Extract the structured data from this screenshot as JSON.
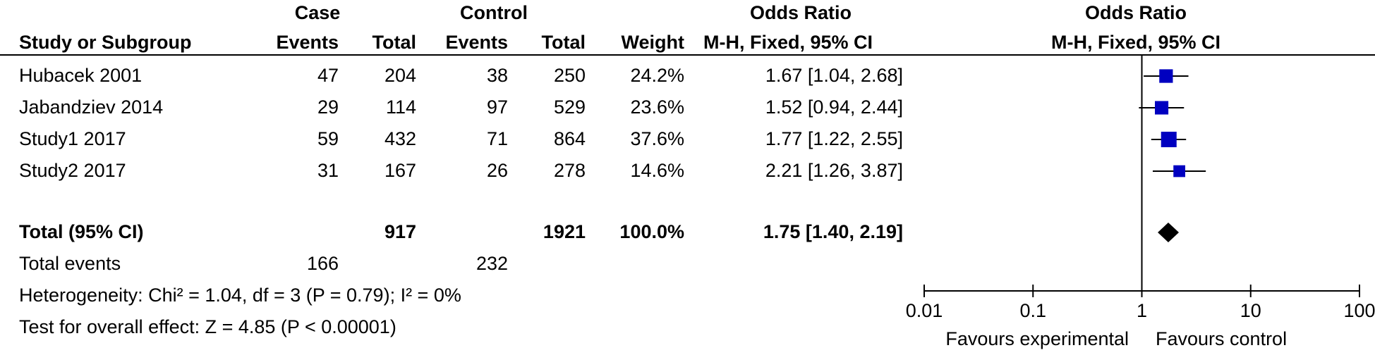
{
  "headers": {
    "case_group": "Case",
    "control_group": "Control",
    "or_group": "Odds Ratio",
    "plot_group": "Odds Ratio",
    "study": "Study or Subgroup",
    "case_events": "Events",
    "case_total": "Total",
    "ctrl_events": "Events",
    "ctrl_total": "Total",
    "weight": "Weight",
    "or_method": "M-H, Fixed, 95% CI",
    "plot_method": "M-H, Fixed, 95% CI"
  },
  "studies": [
    {
      "name": "Hubacek  2001",
      "case_events": "47",
      "case_total": "204",
      "ctrl_events": "38",
      "ctrl_total": "250",
      "weight": "24.2%",
      "or_text": "1.67 [1.04, 2.68]"
    },
    {
      "name": "Jabandziev  2014",
      "case_events": "29",
      "case_total": "114",
      "ctrl_events": "97",
      "ctrl_total": "529",
      "weight": "23.6%",
      "or_text": "1.52 [0.94, 2.44]"
    },
    {
      "name": "Study1 2017",
      "case_events": "59",
      "case_total": "432",
      "ctrl_events": "71",
      "ctrl_total": "864",
      "weight": "37.6%",
      "or_text": "1.77 [1.22, 2.55]"
    },
    {
      "name": "Study2 2017",
      "case_events": "31",
      "case_total": "167",
      "ctrl_events": "26",
      "ctrl_total": "278",
      "weight": "14.6%",
      "or_text": "2.21 [1.26, 3.87]"
    }
  ],
  "total": {
    "label": "Total (95% CI)",
    "case_total": "917",
    "ctrl_total": "1921",
    "weight": "100.0%",
    "or_text": "1.75 [1.40, 2.19]"
  },
  "events": {
    "label": "Total events",
    "case": "166",
    "control": "232"
  },
  "heterogeneity": "Heterogeneity: Chi² = 1.04, df = 3 (P = 0.79); I² = 0%",
  "overall_effect": "Test for overall effect: Z = 4.85 (P < 0.00001)",
  "axis": {
    "ticks": [
      "0.01",
      "0.1",
      "1",
      "10",
      "100"
    ],
    "favours_left": "Favours experimental",
    "favours_right": "Favours control"
  },
  "colors": {
    "study_marker": "#0000c0",
    "total_diamond": "#000000"
  },
  "chart_data": {
    "type": "forest",
    "scale": "log",
    "xlim": [
      0.01,
      100
    ],
    "xticks": [
      0.01,
      0.1,
      1,
      10,
      100
    ],
    "reference_line": 1,
    "studies": [
      {
        "name": "Hubacek  2001",
        "or": 1.67,
        "lower": 1.04,
        "upper": 2.68,
        "weight": 24.2
      },
      {
        "name": "Jabandziev  2014",
        "or": 1.52,
        "lower": 0.94,
        "upper": 2.44,
        "weight": 23.6
      },
      {
        "name": "Study1 2017",
        "or": 1.77,
        "lower": 1.22,
        "upper": 2.55,
        "weight": 37.6
      },
      {
        "name": "Study2 2017",
        "or": 2.21,
        "lower": 1.26,
        "upper": 3.87,
        "weight": 14.6
      }
    ],
    "pooled": {
      "or": 1.75,
      "lower": 1.4,
      "upper": 2.19
    }
  }
}
